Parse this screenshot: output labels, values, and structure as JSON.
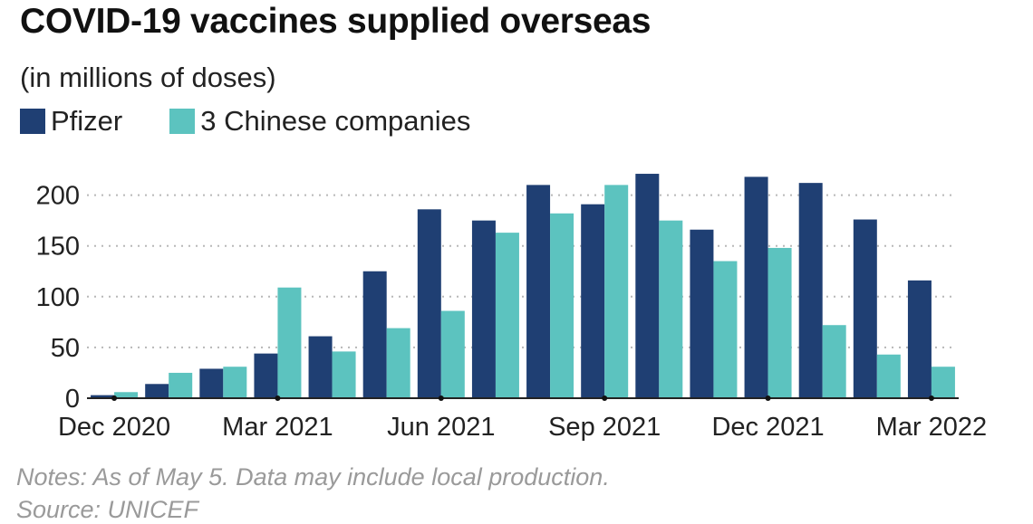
{
  "title": "COVID-19 vaccines supplied overseas",
  "subtitle": "(in millions of doses)",
  "notes": "Notes: As of May 5. Data may include local production.",
  "source": "Source: UNICEF",
  "legend": {
    "items": [
      {
        "label": "Pfizer",
        "color": "#1f3f73"
      },
      {
        "label": "3 Chinese companies",
        "color": "#5cc3bf"
      }
    ]
  },
  "chart_data": {
    "type": "bar",
    "categories": [
      "Dec 2020",
      "Jan 2021",
      "Feb 2021",
      "Mar 2021",
      "Apr 2021",
      "May 2021",
      "Jun 2021",
      "Jul 2021",
      "Aug 2021",
      "Sep 2021",
      "Oct 2021",
      "Nov 2021",
      "Dec 2021",
      "Jan 2022",
      "Feb 2022",
      "Mar 2022"
    ],
    "series": [
      {
        "name": "Pfizer",
        "color": "#1f3f73",
        "values": [
          3,
          14,
          29,
          44,
          61,
          125,
          186,
          175,
          210,
          191,
          221,
          166,
          218,
          212,
          176,
          116
        ]
      },
      {
        "name": "3 Chinese companies",
        "color": "#5cc3bf",
        "values": [
          6,
          25,
          31,
          109,
          46,
          69,
          86,
          163,
          182,
          210,
          175,
          135,
          148,
          72,
          43,
          31
        ]
      }
    ],
    "x_tick_labels": [
      {
        "index": 0,
        "label": "Dec 2020"
      },
      {
        "index": 3,
        "label": "Mar 2021"
      },
      {
        "index": 6,
        "label": "Jun 2021"
      },
      {
        "index": 9,
        "label": "Sep 2021"
      },
      {
        "index": 12,
        "label": "Dec 2021"
      },
      {
        "index": 15,
        "label": "Mar 2022"
      }
    ],
    "y_ticks": [
      0,
      50,
      100,
      150,
      200
    ],
    "ylim": [
      0,
      225
    ],
    "grid": "horizontal dotted",
    "legend_position": "top-left",
    "xlabel": "",
    "ylabel": ""
  }
}
